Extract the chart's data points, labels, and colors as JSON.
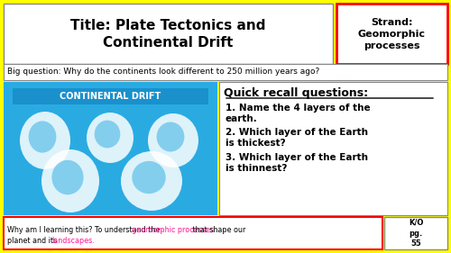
{
  "bg_color": "#FFFF00",
  "title_text": "Title: Plate Tectonics and\nContinental Drift",
  "strand_text": "Strand:\nGeomorphic\nprocesses",
  "big_question": "Big question: Why do the continents look different to 250 million years ago?",
  "map_bg": "#29ABE2",
  "map_label": "CONTINENTAL DRIFT",
  "recall_title": "Quick recall questions:",
  "recall_items": [
    "Name the 4 layers of the\nearth.",
    "Which layer of the Earth\nis thickest?",
    "Which layer of the Earth\nis thinnest?"
  ],
  "bottom_text_black1": "Why am I learning this? To understand the ",
  "bottom_text_pink1": "geomorphic processes",
  "bottom_text_black2": " that shape our",
  "bottom_text_line2_black": "planet and its ",
  "bottom_text_pink2": "landscapes.",
  "bottom_right_text": "K/O\npg.\n55",
  "pink_color": "#FF1493"
}
